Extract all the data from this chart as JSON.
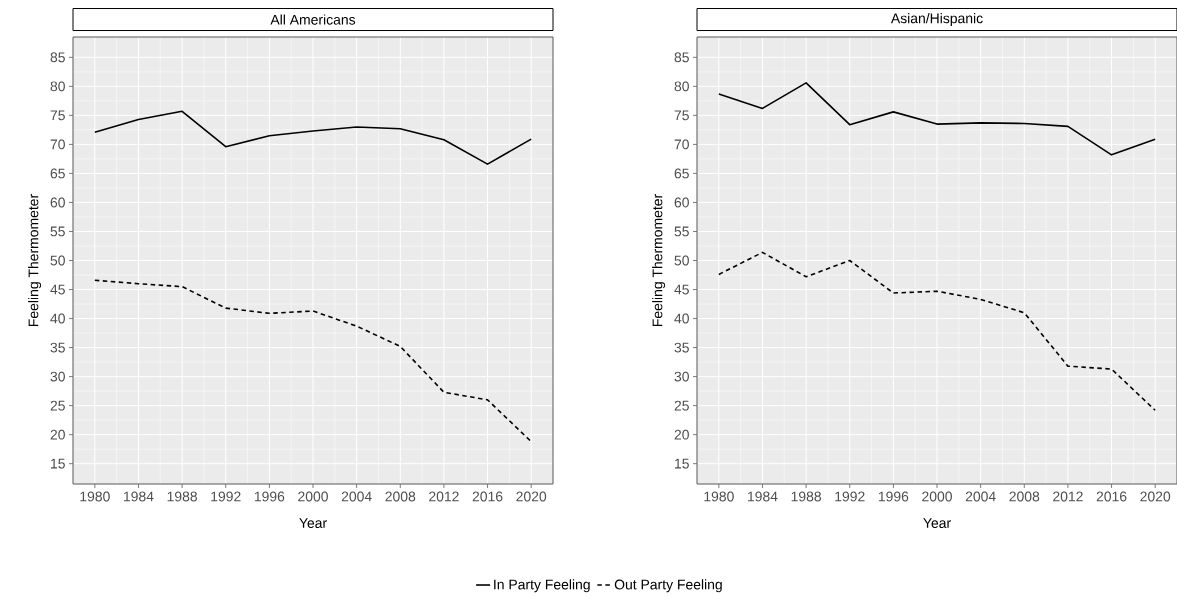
{
  "chart_data": [
    {
      "type": "line",
      "title": "All Americans",
      "xlabel": "Year",
      "ylabel": "Feeling Thermometer",
      "x": [
        1980,
        1984,
        1988,
        1992,
        1996,
        2000,
        2004,
        2008,
        2012,
        2016,
        2020
      ],
      "series": [
        {
          "name": "In Party Feeling",
          "color": "#000000",
          "line_style": "solid",
          "values": [
            72.1,
            74.3,
            75.7,
            69.6,
            71.5,
            72.3,
            73.0,
            72.7,
            70.8,
            66.6,
            70.9
          ]
        },
        {
          "name": "Out Party Feeling",
          "color": "#000000",
          "line_style": "dashed",
          "values": [
            46.6,
            46.0,
            45.5,
            41.8,
            40.9,
            41.3,
            38.7,
            35.2,
            27.3,
            26.0,
            18.8
          ]
        }
      ],
      "xlim": [
        1978,
        2022
      ],
      "ylim": [
        11.5,
        88.5
      ],
      "xticks": [
        1980,
        1984,
        1988,
        1992,
        1996,
        2000,
        2004,
        2008,
        2012,
        2016,
        2020
      ],
      "yticks": [
        15,
        20,
        25,
        30,
        35,
        40,
        45,
        50,
        55,
        60,
        65,
        70,
        75,
        80,
        85
      ],
      "grid": true,
      "legend": "bottom"
    },
    {
      "type": "line",
      "title": "Asian/Hispanic",
      "xlabel": "Year",
      "ylabel": "Feeling Thermometer",
      "x": [
        1980,
        1984,
        1988,
        1992,
        1996,
        2000,
        2004,
        2008,
        2012,
        2016,
        2020
      ],
      "series": [
        {
          "color": "#000000",
          "line_style": "solid",
          "values": [
            78.7,
            76.2,
            80.6,
            73.4,
            75.6,
            73.5,
            73.7,
            73.6,
            73.1,
            68.2,
            70.9
          ]
        },
        {
          "color": "#000000",
          "line_style": "dashed",
          "values": [
            47.6,
            51.4,
            47.2,
            50.0,
            44.4,
            44.7,
            43.3,
            41.0,
            31.8,
            31.3,
            24.2
          ]
        }
      ],
      "xlim": [
        1978,
        2022
      ],
      "ylim": [
        11.5,
        88.5
      ],
      "xticks": [
        1980,
        1984,
        1988,
        1992,
        1996,
        2000,
        2004,
        2008,
        2012,
        2016,
        2020
      ],
      "yticks": [
        15,
        20,
        25,
        30,
        35,
        40,
        45,
        50,
        55,
        60,
        65,
        70,
        75,
        80,
        85
      ],
      "grid": true
    }
  ]
}
